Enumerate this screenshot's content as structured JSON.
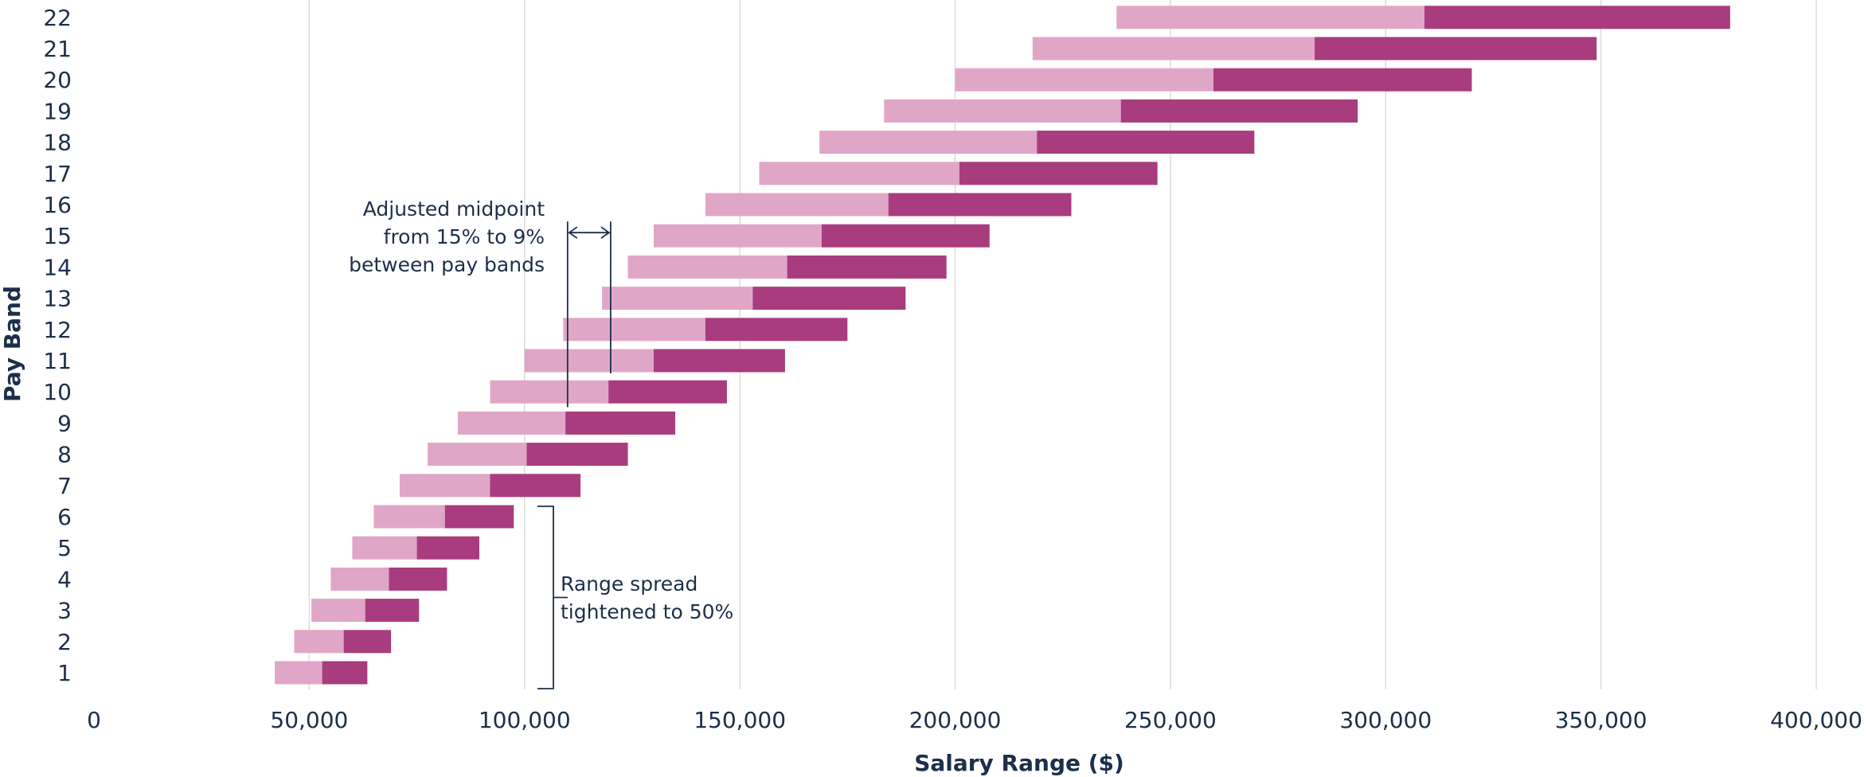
{
  "chart_data": {
    "type": "bar",
    "orientation": "horizontal",
    "stacked": true,
    "title": "",
    "xlabel": "Salary Range ($)",
    "ylabel": "Pay Band",
    "xlim": [
      0,
      400000
    ],
    "x_ticks": [
      0,
      50000,
      100000,
      150000,
      200000,
      250000,
      300000,
      350000,
      400000
    ],
    "x_tick_labels": [
      "0",
      "50,000",
      "100,000",
      "150,000",
      "200,000",
      "250,000",
      "300,000",
      "350,000",
      "400,000"
    ],
    "grid": "vertical",
    "legend": "none",
    "colors": {
      "lower": "#e0a6c8",
      "upper": "#a83c7e",
      "grid": "#dcdcdc",
      "text": "#1c2f4a"
    },
    "categories": [
      "1",
      "2",
      "3",
      "4",
      "5",
      "6",
      "7",
      "8",
      "9",
      "10",
      "11",
      "12",
      "13",
      "14",
      "15",
      "16",
      "17",
      "18",
      "19",
      "20",
      "21",
      "22"
    ],
    "bands": [
      {
        "band": "1",
        "min": 42000,
        "mid": 53000,
        "max": 63500
      },
      {
        "band": "2",
        "min": 46500,
        "mid": 58000,
        "max": 69000
      },
      {
        "band": "3",
        "min": 50500,
        "mid": 63000,
        "max": 75500
      },
      {
        "band": "4",
        "min": 55000,
        "mid": 68500,
        "max": 82000
      },
      {
        "band": "5",
        "min": 60000,
        "mid": 75000,
        "max": 89500
      },
      {
        "band": "6",
        "min": 65000,
        "mid": 81500,
        "max": 97500
      },
      {
        "band": "7",
        "min": 71000,
        "mid": 92000,
        "max": 113000
      },
      {
        "band": "8",
        "min": 77500,
        "mid": 100500,
        "max": 124000
      },
      {
        "band": "9",
        "min": 84500,
        "mid": 109500,
        "max": 135000
      },
      {
        "band": "10",
        "min": 92000,
        "mid": 119500,
        "max": 147000
      },
      {
        "band": "11",
        "min": 100000,
        "mid": 130000,
        "max": 160500
      },
      {
        "band": "12",
        "min": 109000,
        "mid": 142000,
        "max": 175000
      },
      {
        "band": "13",
        "min": 118000,
        "mid": 153000,
        "max": 188500
      },
      {
        "band": "14",
        "min": 124000,
        "mid": 161000,
        "max": 198000
      },
      {
        "band": "15",
        "min": 130000,
        "mid": 169000,
        "max": 208000
      },
      {
        "band": "16",
        "min": 142000,
        "mid": 184500,
        "max": 227000
      },
      {
        "band": "17",
        "min": 154500,
        "mid": 201000,
        "max": 247000
      },
      {
        "band": "18",
        "min": 168500,
        "mid": 219000,
        "max": 269500
      },
      {
        "band": "19",
        "min": 183500,
        "mid": 238500,
        "max": 293500
      },
      {
        "band": "20",
        "min": 200000,
        "mid": 260000,
        "max": 320000
      },
      {
        "band": "21",
        "min": 218000,
        "mid": 283500,
        "max": 349000
      },
      {
        "band": "22",
        "min": 237500,
        "mid": 309000,
        "max": 380000
      }
    ],
    "annotations": [
      {
        "id": "midpoint",
        "lines": [
          "Adjusted midpoint",
          "from 15% to 9%",
          "between pay bands"
        ],
        "x_from": 110000,
        "x_to": 120000,
        "bands": [
          "9",
          "11"
        ]
      },
      {
        "id": "spread",
        "lines": [
          "Range spread",
          "tightened to 50%"
        ],
        "x": 103000,
        "bands": [
          "1",
          "6"
        ]
      }
    ]
  }
}
